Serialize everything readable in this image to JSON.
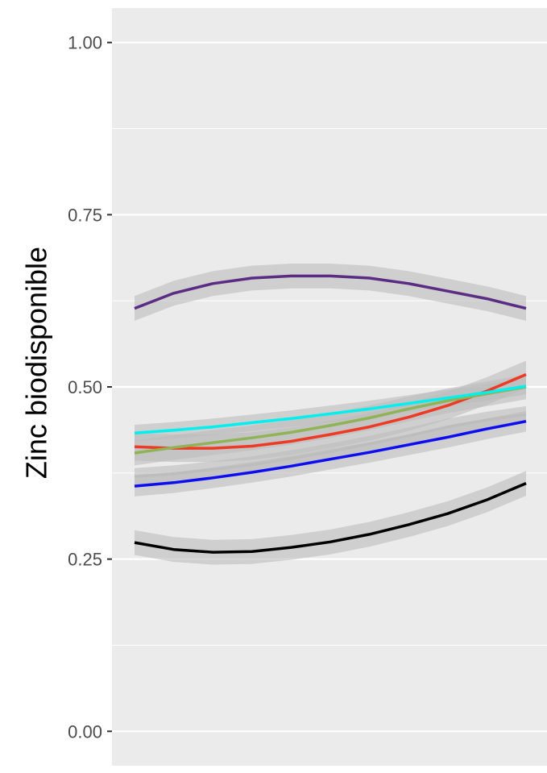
{
  "chart_data": {
    "type": "line",
    "title": "",
    "xlabel": "",
    "ylabel": "Zinc biodisponible",
    "ylim": [
      -0.05,
      1.05
    ],
    "xlim": [
      -0.05,
      1.05
    ],
    "y_ticks": [
      0.0,
      0.25,
      0.5,
      0.75,
      1.0
    ],
    "y_tick_labels": [
      "0.00",
      "0.25",
      "0.50",
      "0.75",
      "1.00"
    ],
    "grid": true,
    "legend": "none",
    "x": [
      0,
      0.1,
      0.2,
      0.3,
      0.4,
      0.5,
      0.6,
      0.7,
      0.8,
      0.9,
      1.0
    ],
    "series": [
      {
        "color": "#5b2c83",
        "values": [
          0.614,
          0.636,
          0.65,
          0.658,
          0.661,
          0.661,
          0.658,
          0.65,
          0.639,
          0.628,
          0.614
        ],
        "band": 0.018
      },
      {
        "color": "#ee3a24",
        "values": [
          0.413,
          0.411,
          0.411,
          0.414,
          0.421,
          0.431,
          0.442,
          0.456,
          0.473,
          0.494,
          0.518
        ],
        "band": 0.02
      },
      {
        "color": "#8fb356",
        "values": [
          0.404,
          0.412,
          0.419,
          0.426,
          0.434,
          0.444,
          0.455,
          0.468,
          0.48,
          0.49,
          0.5
        ],
        "band": 0.018
      },
      {
        "color": "#00f0f0",
        "values": [
          0.433,
          0.437,
          0.442,
          0.448,
          0.454,
          0.461,
          0.468,
          0.476,
          0.484,
          0.492,
          0.501
        ],
        "band": 0.012
      },
      {
        "color": "#bdbdbd",
        "values": [
          0.37,
          0.374,
          0.38,
          0.387,
          0.396,
          0.406,
          0.417,
          0.429,
          0.442,
          0.452,
          0.46
        ],
        "band": 0.012
      },
      {
        "color": "#0d0ef0",
        "values": [
          0.356,
          0.361,
          0.368,
          0.376,
          0.385,
          0.395,
          0.405,
          0.416,
          0.427,
          0.439,
          0.45
        ],
        "band": 0.015
      },
      {
        "color": "#000000",
        "values": [
          0.274,
          0.264,
          0.26,
          0.261,
          0.267,
          0.275,
          0.286,
          0.3,
          0.316,
          0.336,
          0.36
        ],
        "band": 0.018
      }
    ]
  }
}
